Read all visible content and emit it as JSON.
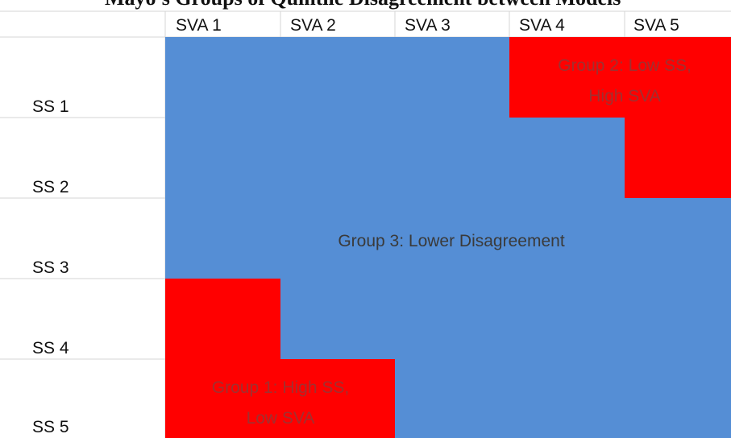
{
  "caption": "Mayo's Groups of Quintile Disagreement between Models",
  "columns": [
    "SVA 1",
    "SVA 2",
    "SVA 3",
    "SVA 4",
    "SVA 5"
  ],
  "rows": [
    "SS 1",
    "SS 2",
    "SS 3",
    "SS 4",
    "SS 5"
  ],
  "groups": [
    {
      "lines": [
        "Group 1: High SS,",
        "Low SVA"
      ]
    },
    {
      "lines": [
        "Group 2: Low SS,",
        "High SVA"
      ]
    },
    {
      "lines": [
        "Group 3: Lower Disagreement"
      ]
    }
  ]
}
